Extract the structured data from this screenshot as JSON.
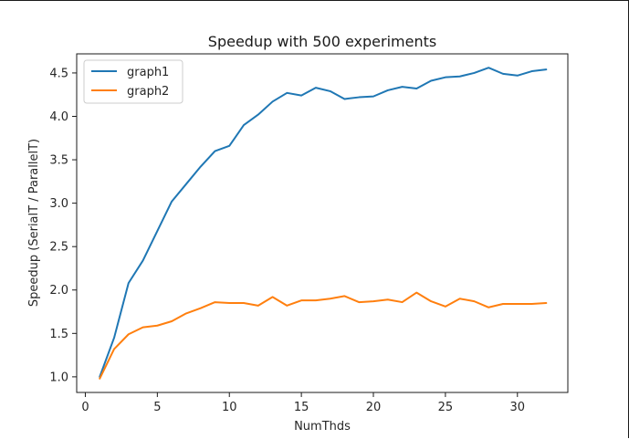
{
  "chart_data": {
    "type": "line",
    "title": "Speedup with 500 experiments",
    "xlabel": "NumThds",
    "ylabel": "Speedup (SerialT / ParallelT)",
    "xlim": [
      -0.6,
      33.5
    ],
    "ylim": [
      0.82,
      4.72
    ],
    "xticks": [
      0,
      5,
      10,
      15,
      20,
      25,
      30
    ],
    "yticks": [
      1.0,
      1.5,
      2.0,
      2.5,
      3.0,
      3.5,
      4.0,
      4.5
    ],
    "xtick_labels": [
      "0",
      "5",
      "10",
      "15",
      "20",
      "25",
      "30"
    ],
    "ytick_labels": [
      "1.0",
      "1.5",
      "2.0",
      "2.5",
      "3.0",
      "3.5",
      "4.0",
      "4.5"
    ],
    "grid": false,
    "legend_position": "upper-left",
    "x": [
      1,
      2,
      3,
      4,
      5,
      6,
      7,
      8,
      9,
      10,
      11,
      12,
      13,
      14,
      15,
      16,
      17,
      18,
      19,
      20,
      21,
      22,
      23,
      24,
      25,
      26,
      27,
      28,
      29,
      30,
      31,
      32
    ],
    "series": [
      {
        "name": "graph1",
        "color": "#1f77b4",
        "values": [
          1.0,
          1.45,
          2.08,
          2.34,
          2.68,
          3.02,
          3.22,
          3.42,
          3.6,
          3.66,
          3.9,
          4.02,
          4.17,
          4.27,
          4.24,
          4.33,
          4.29,
          4.2,
          4.22,
          4.23,
          4.3,
          4.34,
          4.32,
          4.41,
          4.45,
          4.46,
          4.5,
          4.56,
          4.49,
          4.47,
          4.52,
          4.54
        ]
      },
      {
        "name": "graph2",
        "color": "#ff7f0e",
        "values": [
          0.98,
          1.32,
          1.49,
          1.57,
          1.59,
          1.64,
          1.73,
          1.79,
          1.86,
          1.85,
          1.85,
          1.82,
          1.92,
          1.82,
          1.88,
          1.88,
          1.9,
          1.93,
          1.86,
          1.87,
          1.89,
          1.86,
          1.97,
          1.87,
          1.81,
          1.9,
          1.87,
          1.8,
          1.84,
          1.84,
          1.84,
          1.85
        ]
      }
    ]
  }
}
